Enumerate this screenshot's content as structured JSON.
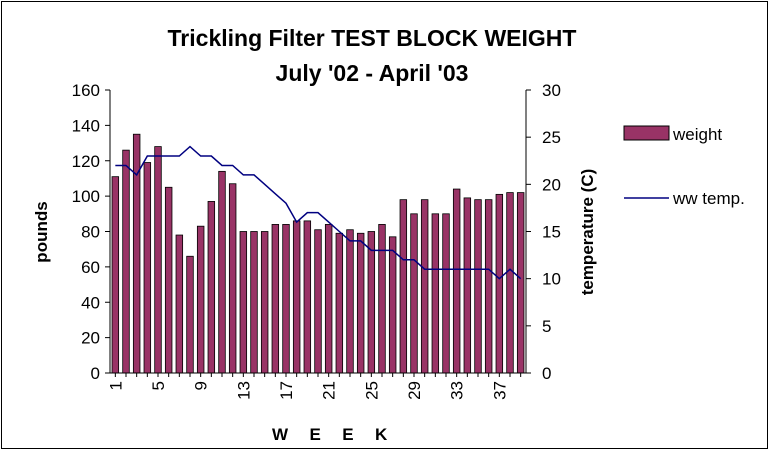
{
  "chart_data": {
    "type": "bar",
    "title": "Trickling Filter TEST BLOCK WEIGHT",
    "subtitle": "July '02 - April '03",
    "xlabel": "W  E  E  K",
    "ylabel": "pounds",
    "y2label": "temperature (C)",
    "ylim": [
      0,
      160
    ],
    "y2lim": [
      0,
      30
    ],
    "yticks": [
      "0",
      "20",
      "40",
      "60",
      "80",
      "100",
      "120",
      "140",
      "160"
    ],
    "y2ticks": [
      "0",
      "5",
      "10",
      "15",
      "20",
      "25",
      "30"
    ],
    "xticks": [
      "1",
      "5",
      "9",
      "13",
      "17",
      "21",
      "25",
      "29",
      "33",
      "37"
    ],
    "x": [
      1,
      2,
      3,
      4,
      5,
      6,
      7,
      8,
      9,
      10,
      11,
      12,
      13,
      14,
      15,
      16,
      17,
      18,
      19,
      20,
      21,
      22,
      23,
      24,
      25,
      26,
      27,
      28,
      29,
      30,
      31,
      32,
      33,
      34,
      35,
      36,
      37,
      38,
      39
    ],
    "series": [
      {
        "name": "weight",
        "kind": "bar",
        "axis": "left",
        "color": "#993366",
        "values": [
          111,
          126,
          135,
          119,
          128,
          105,
          78,
          66,
          83,
          97,
          114,
          107,
          80,
          80,
          80,
          84,
          84,
          86,
          86,
          81,
          84,
          79,
          81,
          79,
          80,
          84,
          77,
          98,
          90,
          98,
          90,
          90,
          104,
          99,
          98,
          98,
          101,
          102,
          102
        ]
      },
      {
        "name": "ww temp.",
        "kind": "line",
        "axis": "right",
        "color": "#000080",
        "values": [
          22,
          22,
          21,
          23,
          23,
          23,
          23,
          24,
          23,
          23,
          22,
          22,
          21,
          21,
          20,
          19,
          18,
          16,
          17,
          17,
          16,
          15,
          14,
          14,
          13,
          13,
          13,
          12,
          12,
          11,
          11,
          11,
          11,
          11,
          11,
          11,
          10,
          11,
          10
        ]
      }
    ],
    "legend_position": "right"
  }
}
